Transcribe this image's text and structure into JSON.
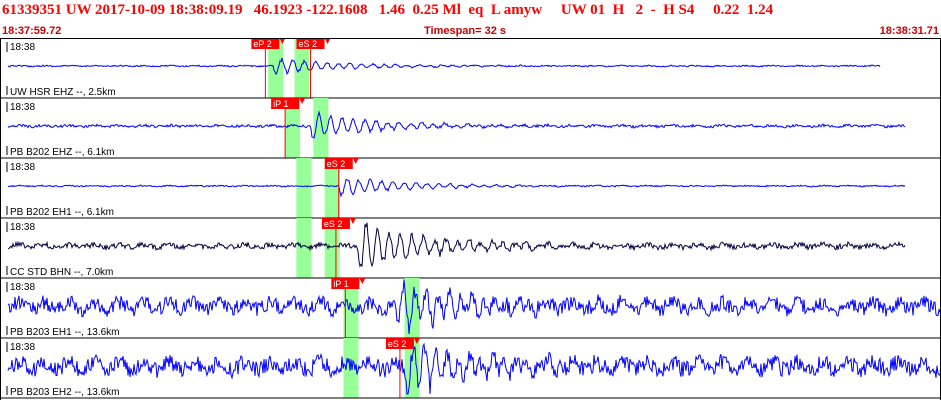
{
  "header": {
    "line": "61339351 UW 2017-10-09 18:38:09.19   46.1923 -122.1608   1.46  0.25 Ml  eq  L amyw     UW 01  H   2  -  H S4     0.22  1.24",
    "start_time": "18:37:59.72",
    "timespan": "Timespan=  32 s",
    "end_time": "18:38:31.71"
  },
  "colors": {
    "header_text": "#ff0000",
    "trace_blue": "#0000ff",
    "trace_dark": "#000040",
    "pick": "#ff0000",
    "window": "#99ff99"
  },
  "traces": [
    {
      "time_label": "18:38",
      "station": "UW HSR EHZ --, 2.5km",
      "color": "#0000ff",
      "amp": 0.35,
      "noise": 2,
      "onset": 0.29,
      "burst": 14,
      "picks": [
        {
          "label": "eP 2",
          "t": 0.282
        },
        {
          "label": "eS 2",
          "t": 0.33
        }
      ],
      "windows": [
        0.285,
        0.313
      ]
    },
    {
      "time_label": "18:38",
      "station": "PB B202 EHZ --, 6.1km",
      "color": "#0000ff",
      "amp": 0.5,
      "noise": 3,
      "onset": 0.33,
      "burst": 16,
      "picks": [
        {
          "label": "iP 1",
          "t": 0.303
        }
      ],
      "windows": [
        0.303,
        0.333
      ]
    },
    {
      "time_label": "18:38",
      "station": "PB B202 EH1 --, 6.1km",
      "color": "#0000ff",
      "amp": 0.35,
      "noise": 2,
      "onset": 0.36,
      "burst": 16,
      "picks": [
        {
          "label": "eS 2",
          "t": 0.36
        }
      ],
      "windows": [
        0.315,
        0.345
      ]
    },
    {
      "time_label": "18:38",
      "station": "CC STD BHN --, 7.0km",
      "color": "#000040",
      "amp": 0.9,
      "noise": 4,
      "onset": 0.38,
      "burst": 20,
      "picks": [
        {
          "label": "eS 2",
          "t": 0.357
        }
      ],
      "windows": [
        0.315,
        0.345
      ]
    },
    {
      "time_label": "18:38",
      "station": "PB B203 EH1 --, 13.6km",
      "color": "#0000ff",
      "amp": 1,
      "noise": 10,
      "onset": 0.42,
      "burst": 18,
      "picks": [
        {
          "label": "iP 1",
          "t": 0.367
        }
      ],
      "windows": [
        0.365,
        0.43
      ]
    },
    {
      "time_label": "18:38",
      "station": "PB B203 EH2 --, 13.6km",
      "color": "#0000ff",
      "amp": 1,
      "noise": 11,
      "onset": 0.43,
      "burst": 20,
      "picks": [
        {
          "label": "eS 2",
          "t": 0.425
        }
      ],
      "windows": [
        0.365,
        0.43
      ]
    }
  ]
}
